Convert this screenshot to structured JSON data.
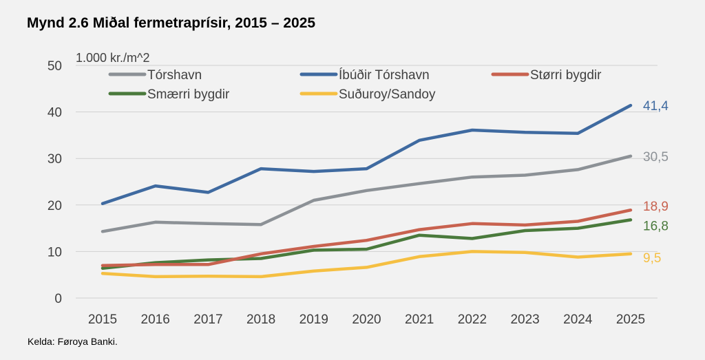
{
  "title": "Mynd 2.6 Miðal fermetraprísir, 2015 – 2025",
  "source": "Kelda: Føroya Banki.",
  "chart_data": {
    "type": "line",
    "title": "Mynd 2.6 Miðal fermetraprísir, 2015 – 2025",
    "ylabel": "1.000 kr./m^2",
    "xlabel": "",
    "ylim": [
      0,
      50
    ],
    "yticks": [
      0,
      10,
      20,
      30,
      40,
      50
    ],
    "x": [
      "2015",
      "2016",
      "2017",
      "2018",
      "2019",
      "2020",
      "2021",
      "2022",
      "2023",
      "2024",
      "2025"
    ],
    "grid": true,
    "legend": "top",
    "series": [
      {
        "name": "Tórshavn",
        "color": "#8c9196",
        "end_label": "30,5",
        "values": [
          14.3,
          16.3,
          16.0,
          15.8,
          21.0,
          23.1,
          24.6,
          26.0,
          26.4,
          27.6,
          30.5
        ]
      },
      {
        "name": "Íbúðir Tórshavn",
        "color": "#3f6aa0",
        "end_label": "41,4",
        "values": [
          20.3,
          24.1,
          22.7,
          27.8,
          27.2,
          27.8,
          33.9,
          36.1,
          35.6,
          35.4,
          41.4
        ]
      },
      {
        "name": "Størri bygdir",
        "color": "#c8624f",
        "end_label": "18,9",
        "values": [
          7.0,
          7.2,
          7.2,
          9.5,
          11.1,
          12.4,
          14.7,
          16.0,
          15.7,
          16.5,
          18.9
        ]
      },
      {
        "name": "Smærri bygdir",
        "color": "#4a7a3c",
        "end_label": "16,8",
        "values": [
          6.4,
          7.6,
          8.2,
          8.5,
          10.3,
          10.5,
          13.5,
          12.8,
          14.5,
          15.0,
          16.8
        ]
      },
      {
        "name": "Suðuroy/Sandoy",
        "color": "#f5bf42",
        "end_label": "9,5",
        "values": [
          5.3,
          4.6,
          4.7,
          4.6,
          5.8,
          6.6,
          8.9,
          10.0,
          9.8,
          8.8,
          9.5
        ]
      }
    ]
  }
}
